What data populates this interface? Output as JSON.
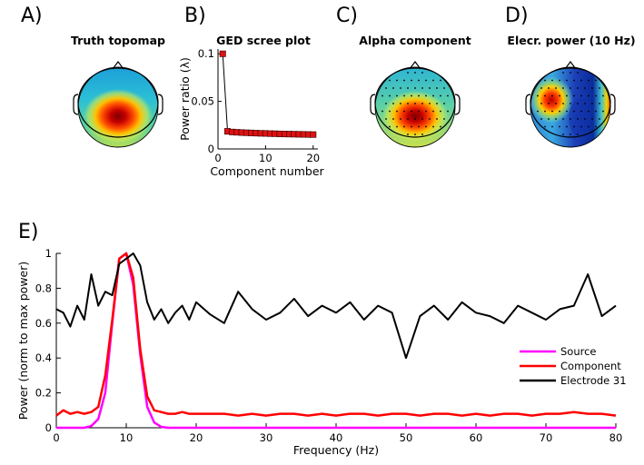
{
  "panel_letters": [
    "A)",
    "B)",
    "C)",
    "D)",
    "E)"
  ],
  "titles": {
    "a": "Truth topomap",
    "b": "GED scree plot",
    "c": "Alpha component",
    "d": "Elecr. power (10 Hz)"
  },
  "chart_data": [
    {
      "type": "topomap",
      "title": "Truth topomap",
      "hotspot": "posterior-midline",
      "electrodes_shown": false
    },
    {
      "type": "scatter",
      "title": "GED scree plot",
      "xlabel": "Component number",
      "ylabel": "Power ratio (λ)",
      "xlim": [
        0,
        21
      ],
      "ylim": [
        0,
        0.105
      ],
      "xticks": [
        "0",
        "10",
        "20"
      ],
      "yticks": [
        "0",
        "0.05",
        "0.1"
      ],
      "x": [
        1,
        2,
        3,
        4,
        5,
        6,
        7,
        8,
        9,
        10,
        11,
        12,
        13,
        14,
        15,
        16,
        17,
        18,
        19,
        20
      ],
      "values": [
        0.1,
        0.0185,
        0.0178,
        0.0175,
        0.0172,
        0.017,
        0.0168,
        0.0166,
        0.0164,
        0.0163,
        0.0161,
        0.016,
        0.0158,
        0.0157,
        0.0156,
        0.0155,
        0.0154,
        0.0153,
        0.0152,
        0.0151
      ],
      "marker_color": "#dd1111",
      "line_color": "#000000"
    },
    {
      "type": "topomap",
      "title": "Alpha component",
      "hotspot": "posterior-midline",
      "electrodes_shown": true
    },
    {
      "type": "topomap",
      "title": "Elecr. power (10 Hz)",
      "hotspot": "left-central + right-temporal",
      "electrodes_shown": true
    },
    {
      "type": "line",
      "xlabel": "Frequency (Hz)",
      "ylabel": "Power (norm to max power)",
      "xlim": [
        0,
        80
      ],
      "ylim": [
        0,
        1
      ],
      "xticks": [
        "0",
        "10",
        "20",
        "30",
        "40",
        "50",
        "60",
        "70",
        "80"
      ],
      "yticks": [
        "0",
        "0.2",
        "0.4",
        "0.6",
        "0.8",
        "1"
      ],
      "legend_position": "lower-right",
      "x": [
        0,
        1,
        2,
        3,
        4,
        5,
        6,
        7,
        8,
        9,
        10,
        11,
        12,
        13,
        14,
        15,
        16,
        17,
        18,
        19,
        20,
        22,
        24,
        26,
        28,
        30,
        32,
        34,
        36,
        38,
        40,
        42,
        44,
        46,
        48,
        50,
        52,
        54,
        56,
        58,
        60,
        62,
        64,
        66,
        68,
        70,
        72,
        74,
        76,
        78,
        80
      ],
      "series": [
        {
          "name": "Source",
          "color": "#ff00ff",
          "values": [
            0,
            0,
            0,
            0,
            0,
            0.01,
            0.05,
            0.2,
            0.6,
            0.97,
            1.0,
            0.82,
            0.42,
            0.12,
            0.03,
            0.005,
            0,
            0,
            0,
            0,
            0,
            0,
            0,
            0,
            0,
            0,
            0,
            0,
            0,
            0,
            0,
            0,
            0,
            0,
            0,
            0,
            0,
            0,
            0,
            0,
            0,
            0,
            0,
            0,
            0,
            0,
            0,
            0,
            0,
            0,
            0
          ]
        },
        {
          "name": "Component",
          "color": "#ff0000",
          "values": [
            0.07,
            0.1,
            0.08,
            0.09,
            0.08,
            0.09,
            0.12,
            0.3,
            0.62,
            0.97,
            1.0,
            0.86,
            0.45,
            0.18,
            0.1,
            0.09,
            0.08,
            0.08,
            0.09,
            0.08,
            0.08,
            0.08,
            0.08,
            0.07,
            0.08,
            0.07,
            0.08,
            0.08,
            0.07,
            0.08,
            0.07,
            0.08,
            0.08,
            0.07,
            0.08,
            0.08,
            0.07,
            0.08,
            0.08,
            0.07,
            0.08,
            0.07,
            0.08,
            0.08,
            0.07,
            0.08,
            0.08,
            0.09,
            0.08,
            0.08,
            0.07
          ]
        },
        {
          "name": "Electrode 31",
          "color": "#000000",
          "values": [
            0.68,
            0.66,
            0.58,
            0.7,
            0.62,
            0.88,
            0.7,
            0.78,
            0.76,
            0.94,
            0.97,
            1.0,
            0.93,
            0.72,
            0.62,
            0.68,
            0.6,
            0.66,
            0.7,
            0.62,
            0.72,
            0.65,
            0.6,
            0.78,
            0.68,
            0.62,
            0.66,
            0.74,
            0.64,
            0.7,
            0.66,
            0.72,
            0.62,
            0.7,
            0.66,
            0.4,
            0.64,
            0.7,
            0.62,
            0.72,
            0.66,
            0.64,
            0.6,
            0.7,
            0.66,
            0.62,
            0.68,
            0.7,
            0.88,
            0.64,
            0.7
          ]
        }
      ]
    }
  ]
}
